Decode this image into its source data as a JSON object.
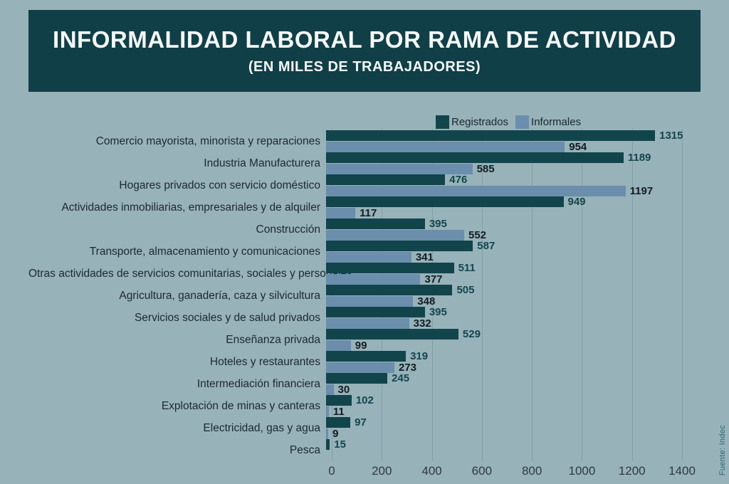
{
  "header": {
    "title": "INFORMALIDAD LABORAL POR RAMA DE ACTIVIDAD",
    "subtitle": "(EN MILES DE TRABAJADORES)"
  },
  "legend": [
    {
      "label": "Registrados",
      "color": "#12444b"
    },
    {
      "label": "Informales",
      "color": "#6a8eac"
    }
  ],
  "source": "Fuente:  Indec",
  "colors": {
    "background": "#97b2b9",
    "header_bg": "#113f47",
    "registrados_bar": "#12444b",
    "informales_bar": "#6a8eac",
    "registrados_value_text": "#14464d",
    "informales_value_text": "#141c24",
    "category_text": "#1d2830",
    "axis_text": "#2e3940",
    "source_text": "#2c6a72"
  },
  "chart_data": {
    "type": "bar",
    "orientation": "horizontal",
    "title": "INFORMALIDAD LABORAL POR RAMA DE ACTIVIDAD",
    "subtitle": "(EN MILES DE TRABAJADORES)",
    "xlabel": "",
    "ylabel": "",
    "xlim": [
      0,
      1400
    ],
    "x_ticks": [
      0,
      200,
      400,
      600,
      800,
      1000,
      1200,
      1400
    ],
    "grid": true,
    "legend_position": "top",
    "categories": [
      "Comercio mayorista, minorista y reparaciones",
      "Industria Manufacturera",
      "Hogares privados con servicio doméstico",
      "Actividades inmobiliarias, empresariales y de alquiler",
      "Construcción",
      "Transporte, almacenamiento y comunicaciones",
      "Otras actividades de servicios comunitarias, sociales y personales",
      "Agricultura, ganadería, caza y silvicultura",
      "Servicios sociales y de salud privados",
      "Enseñanza privada",
      "Hoteles y restaurantes",
      "Intermediación financiera",
      "Explotación de minas y canteras",
      "Electricidad, gas y agua",
      "Pesca"
    ],
    "series": [
      {
        "name": "Registrados",
        "color": "#12444b",
        "values": [
          1315,
          1189,
          476,
          949,
          395,
          587,
          511,
          505,
          395,
          529,
          319,
          245,
          102,
          97,
          15
        ]
      },
      {
        "name": "Informales",
        "color": "#6a8eac",
        "values": [
          954,
          585,
          1197,
          117,
          552,
          341,
          377,
          348,
          332,
          99,
          273,
          30,
          11,
          9,
          null
        ]
      }
    ]
  }
}
